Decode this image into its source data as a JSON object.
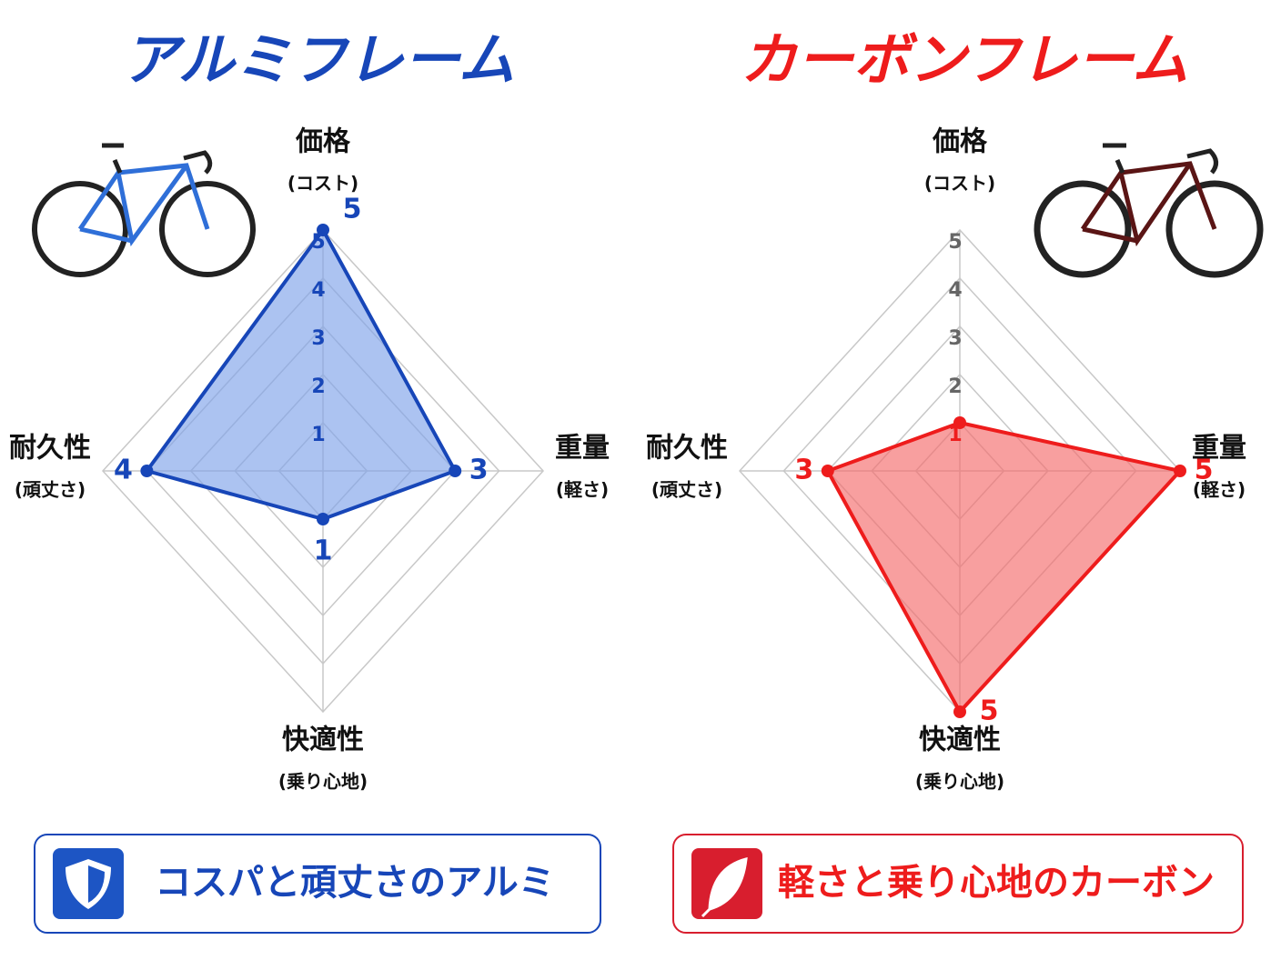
{
  "chart_data": [
    {
      "type": "radar",
      "title": "アルミフレーム",
      "color": "#1746b8",
      "fill": "#7fa3ea",
      "tick_color": "#1746b8",
      "categories": [
        "価格",
        "重量",
        "快適性",
        "耐久性"
      ],
      "subcategories": [
        "(コスト)",
        "(軽さ)",
        "(乗り心地)",
        "(頑丈さ)"
      ],
      "values": [
        5,
        3,
        1,
        4
      ],
      "value_labels_shown": [
        true,
        true,
        true,
        true
      ],
      "rlim": [
        0,
        5
      ],
      "rticks": [
        1,
        2,
        3,
        4,
        5
      ],
      "grid": true,
      "caption": "コスパと頑丈さのアルミ"
    },
    {
      "type": "radar",
      "title": "カーボンフレーム",
      "color": "#ee1c1c",
      "fill": "#f56b6b",
      "tick_color": "#666666",
      "categories": [
        "価格",
        "重量",
        "快適性",
        "耐久性"
      ],
      "subcategories": [
        "(コスト)",
        "(軽さ)",
        "(乗り心地)",
        "(頑丈さ)"
      ],
      "values": [
        1,
        5,
        5,
        3
      ],
      "value_labels_shown": [
        false,
        true,
        true,
        true
      ],
      "rlim": [
        0,
        5
      ],
      "rticks": [
        1,
        2,
        3,
        4,
        5
      ],
      "grid": true,
      "caption": "軽さと乗り心地のカーボン"
    }
  ]
}
